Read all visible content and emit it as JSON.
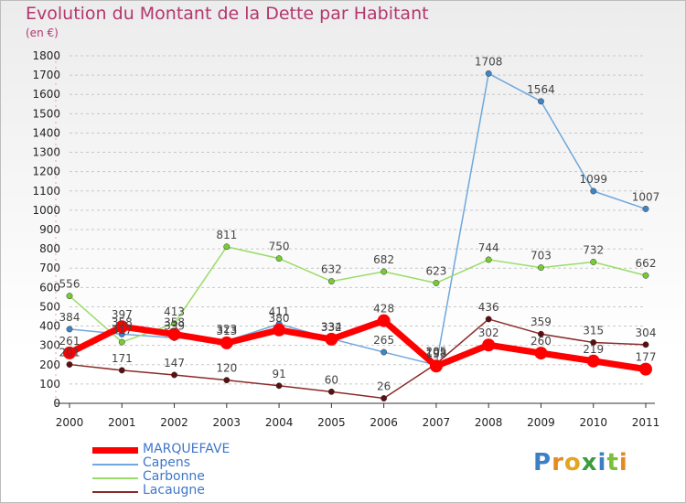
{
  "title": "Evolution du Montant de la Dette par Habitant",
  "unit": "(en €)",
  "logo": "Proxiti",
  "colors": {
    "title": "#b4366e",
    "legend_text": "#3f77c8",
    "grid": "#c8c8c8"
  },
  "chart_data": {
    "type": "line",
    "x": [
      "2000",
      "2001",
      "2002",
      "2003",
      "2004",
      "2005",
      "2006",
      "2007",
      "2008",
      "2009",
      "2010",
      "2011"
    ],
    "ylim": [
      0,
      1800
    ],
    "yticks": [
      0,
      100,
      200,
      300,
      400,
      500,
      600,
      700,
      800,
      900,
      1000,
      1100,
      1200,
      1300,
      1400,
      1500,
      1600,
      1700,
      1800
    ],
    "grid": "horizontal dashed",
    "legend_position": "bottom-left",
    "series": [
      {
        "name": "MARQUEFAVE",
        "color": "#ff0000",
        "point_color": "#ff0000",
        "width": 7,
        "values": [
          261,
          397,
          358,
          313,
          380,
          332,
          428,
          193,
          302,
          260,
          219,
          177
        ]
      },
      {
        "name": "Capens",
        "color": "#6fa8dc",
        "point_color": "#3d85c6",
        "width": 1.5,
        "values": [
          384,
          358,
          339,
          323,
          411,
          334,
          265,
          198,
          1708,
          1564,
          1099,
          1007
        ]
      },
      {
        "name": "Carbonne",
        "color": "#99dd66",
        "point_color": "#77cc33",
        "width": 1.5,
        "values": [
          556,
          317,
          413,
          811,
          750,
          632,
          682,
          623,
          744,
          703,
          732,
          662
        ]
      },
      {
        "name": "Lacaugne",
        "color": "#8b2a2a",
        "point_color": "#5a1010",
        "width": 1.5,
        "values": [
          201,
          171,
          147,
          120,
          91,
          60,
          26,
          205,
          436,
          359,
          315,
          304
        ]
      }
    ]
  }
}
